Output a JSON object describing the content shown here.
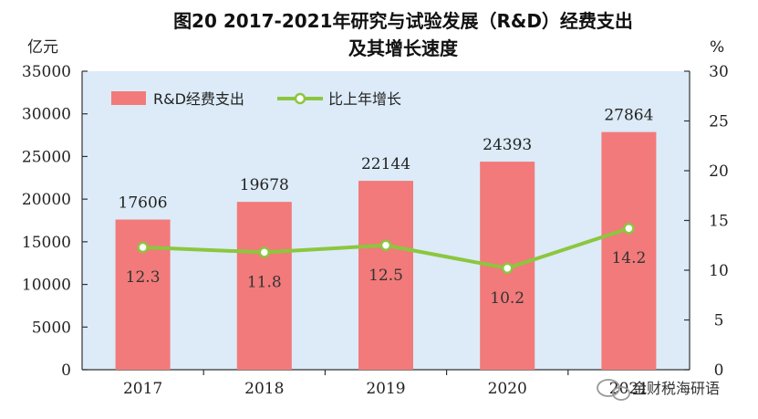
{
  "chart_data": {
    "type": "bar",
    "title_line1": "图20  2017-2021年研究与试验发展（R&D）经费支出",
    "title_line2": "及其增长速度",
    "left_unit": "亿元",
    "right_unit": "%",
    "categories": [
      "2017",
      "2018",
      "2019",
      "2020",
      "2021"
    ],
    "left_ylim": [
      0,
      35000
    ],
    "left_ticks": [
      0,
      5000,
      10000,
      15000,
      20000,
      25000,
      30000,
      35000
    ],
    "right_ylim": [
      0,
      30
    ],
    "right_ticks": [
      0,
      5,
      10,
      15,
      20,
      25,
      30
    ],
    "legend_position": "top-left",
    "series": [
      {
        "name": "R&D经费支出",
        "type": "bar",
        "axis": "left",
        "color": "#f27a7a",
        "values": [
          17606,
          19678,
          22144,
          24393,
          27864
        ]
      },
      {
        "name": "比上年增长",
        "type": "line",
        "axis": "right",
        "color": "#8cc63f",
        "values": [
          12.3,
          11.8,
          12.5,
          10.2,
          14.2
        ]
      }
    ],
    "value_labels": [
      "17606",
      "19678",
      "22144",
      "24393",
      "27864"
    ],
    "growth_labels": [
      "12.3",
      "11.8",
      "12.5",
      "10.2",
      "14.2"
    ],
    "plot_background": "#dcebf7"
  },
  "watermark": "金财税海研语"
}
